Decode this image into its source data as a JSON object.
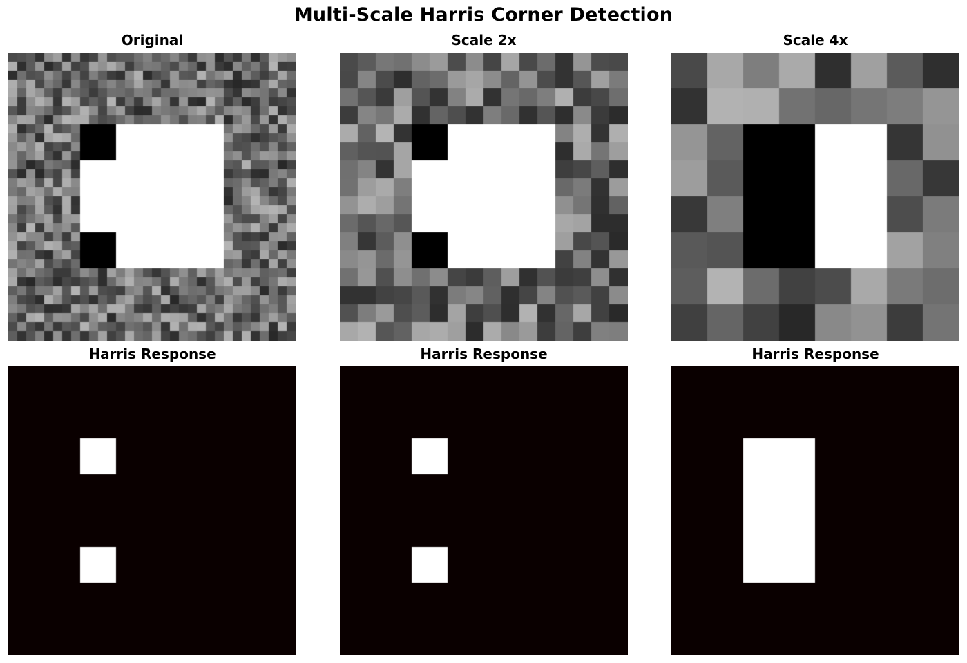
{
  "figure": {
    "title": "Multi-Scale Harris Corner Detection"
  },
  "panels": [
    {
      "title": "Original",
      "kind": "image",
      "grid": 32,
      "seed": 11,
      "white": [
        8,
        8,
        24,
        24
      ],
      "black": [
        [
          8,
          8,
          12,
          12
        ],
        [
          8,
          20,
          12,
          24
        ]
      ]
    },
    {
      "title": "Scale 2x",
      "kind": "image",
      "grid": 16,
      "seed": 23,
      "white": [
        4,
        4,
        12,
        12
      ],
      "black": [
        [
          4,
          4,
          6,
          6
        ],
        [
          4,
          10,
          6,
          12
        ]
      ]
    },
    {
      "title": "Scale 4x",
      "kind": "image",
      "grid": 8,
      "seed": 7,
      "white": [
        4,
        2,
        6,
        6
      ],
      "black": [
        [
          2,
          2,
          4,
          6
        ]
      ]
    },
    {
      "title": "Harris Response",
      "kind": "response",
      "grid": 32,
      "white": [
        [
          8,
          8,
          12,
          12
        ],
        [
          8,
          20,
          12,
          24
        ]
      ]
    },
    {
      "title": "Harris Response",
      "kind": "response",
      "grid": 16,
      "white": [
        [
          4,
          4,
          6,
          6
        ],
        [
          4,
          10,
          6,
          12
        ]
      ]
    },
    {
      "title": "Harris Response",
      "kind": "response",
      "grid": 8,
      "white": [
        [
          2,
          2,
          4,
          6
        ]
      ]
    }
  ],
  "colors": {
    "response_background": "#0a0000",
    "response_peak": "#ffffff",
    "white": "#ffffff",
    "black": "#000000"
  }
}
